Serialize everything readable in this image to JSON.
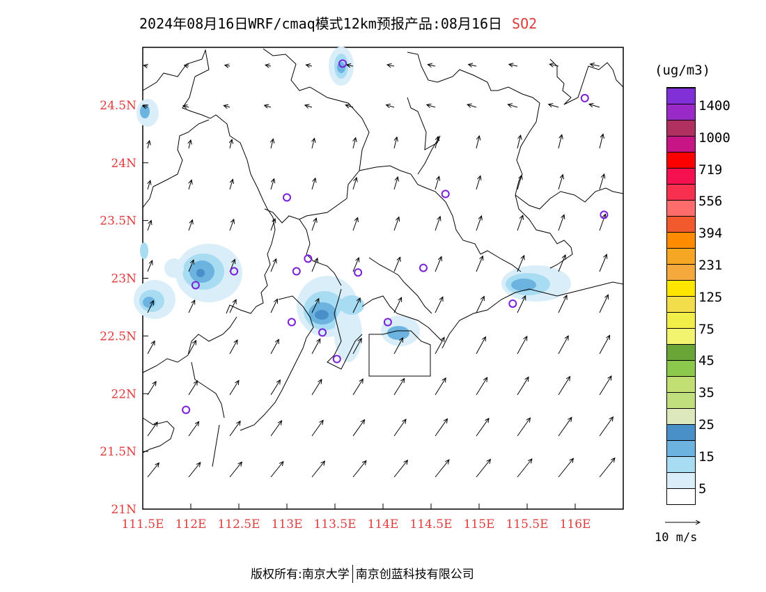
{
  "title": {
    "main": "2024年08月16日WRF/cmaq模式12km预报产品:08月16日",
    "pollutant": "SO2"
  },
  "axes": {
    "lat_labels": [
      "24.5N",
      "24N",
      "23.5N",
      "23N",
      "22.5N",
      "22N",
      "21.5N",
      "21N"
    ],
    "lon_labels": [
      "111.5E",
      "112E",
      "112.5E",
      "113E",
      "113.5E",
      "114E",
      "114.5E",
      "115E",
      "115.5E",
      "116E"
    ],
    "lat_range": [
      21,
      25
    ],
    "lon_range": [
      111.5,
      116.5
    ]
  },
  "legend": {
    "unit": "(ug/m3)",
    "ticks": [
      "1400",
      "1000",
      "719",
      "556",
      "394",
      "231",
      "125",
      "75",
      "45",
      "35",
      "25",
      "15",
      "5"
    ],
    "colors": [
      "#ffffff",
      "#d9eef8",
      "#a8dcf3",
      "#6cb3e0",
      "#4a90c8",
      "#dde9bd",
      "#c2df7e",
      "#c1df72",
      "#8cc84b",
      "#6aa637",
      "#f2f46f",
      "#f1ee4a",
      "#f2de4a",
      "#ffe600",
      "#f5a93d",
      "#f5a623",
      "#ff8c00",
      "#f25a2e",
      "#ff6c6c",
      "#f7304f",
      "#f5104f",
      "#ff0000",
      "#c71585",
      "#b03060",
      "#9a2ac7",
      "#8130d8"
    ],
    "vector_reference": "10 m/s"
  },
  "footer": {
    "copyright_prefix": "版权所有:",
    "org1": "南京大学",
    "org2": "南京创蓝科技有限公司"
  },
  "stations": [
    {
      "lon": 113.58,
      "lat": 24.86
    },
    {
      "lon": 116.1,
      "lat": 24.56
    },
    {
      "lon": 113.0,
      "lat": 23.7
    },
    {
      "lon": 114.65,
      "lat": 23.73
    },
    {
      "lon": 116.3,
      "lat": 23.55
    },
    {
      "lon": 113.22,
      "lat": 23.17
    },
    {
      "lon": 113.1,
      "lat": 23.06
    },
    {
      "lon": 112.45,
      "lat": 23.06
    },
    {
      "lon": 113.74,
      "lat": 23.05
    },
    {
      "lon": 114.42,
      "lat": 23.09
    },
    {
      "lon": 112.05,
      "lat": 22.94
    },
    {
      "lon": 115.35,
      "lat": 22.78
    },
    {
      "lon": 113.05,
      "lat": 22.62
    },
    {
      "lon": 113.37,
      "lat": 22.53
    },
    {
      "lon": 114.05,
      "lat": 22.62
    },
    {
      "lon": 113.52,
      "lat": 22.3
    },
    {
      "lon": 111.95,
      "lat": 21.86
    }
  ]
}
